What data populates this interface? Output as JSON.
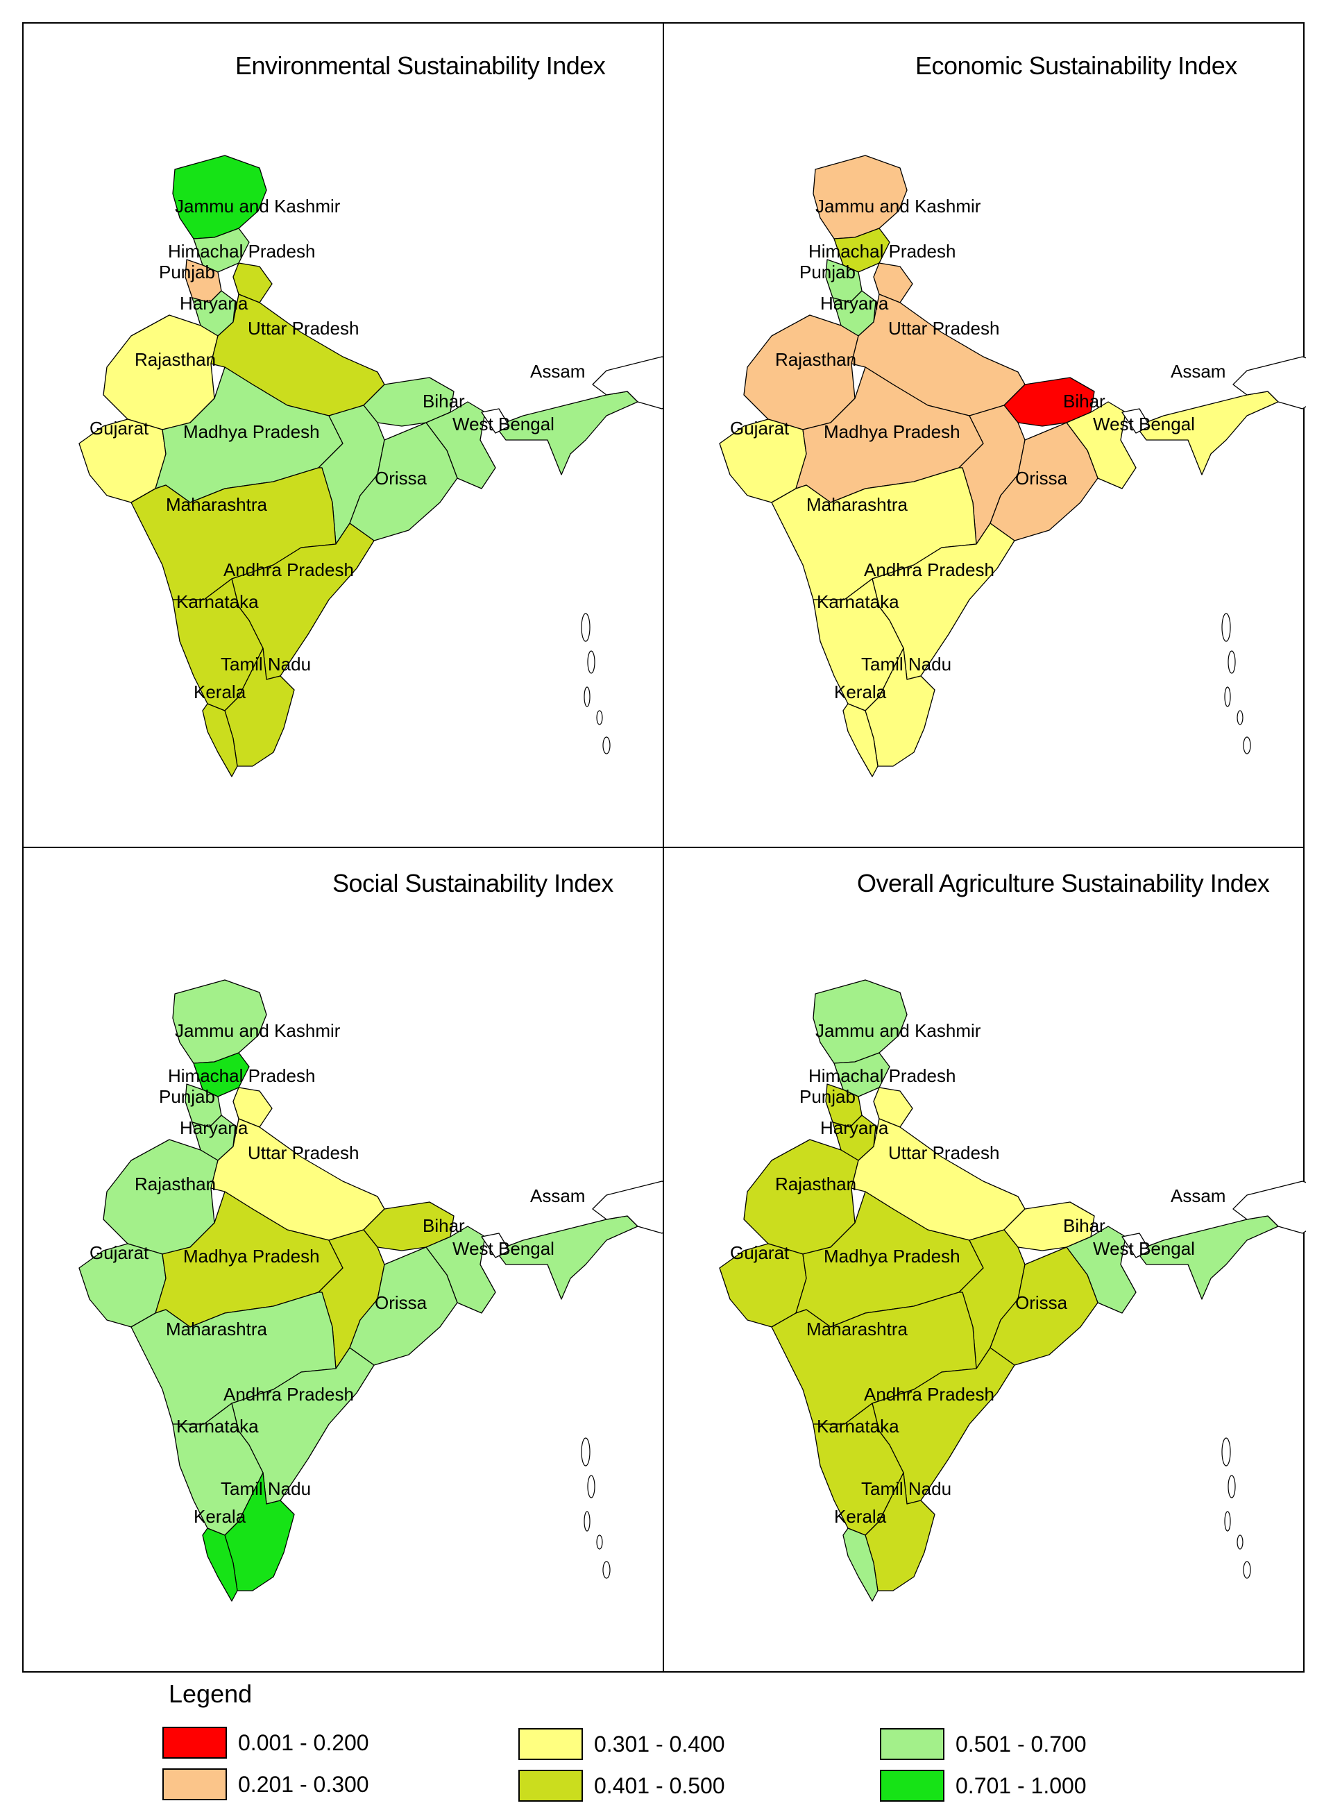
{
  "classes": [
    {
      "label": "0.001 - 0.200",
      "color": "#ff0000"
    },
    {
      "label": "0.201 - 0.300",
      "color": "#fbc58a"
    },
    {
      "label": "0.301 - 0.400",
      "color": "#ffff80"
    },
    {
      "label": "0.401 - 0.500",
      "color": "#cbdd1e"
    },
    {
      "label": "0.501 - 0.700",
      "color": "#a3f08a"
    },
    {
      "label": "0.701 - 1.000",
      "color": "#16e316"
    }
  ],
  "legend": {
    "title": "Legend"
  },
  "panels": [
    {
      "title": "Environmental Sustainability Index",
      "classes": {
        "jk": 5,
        "hp": 4,
        "punjab": 1,
        "haryana": 4,
        "uttarakhand": 3,
        "up": 3,
        "rajasthan": 2,
        "gujarat": 2,
        "mp": 4,
        "maharashtra": 3,
        "karnataka": 3,
        "andhra": 3,
        "tamilnadu": 3,
        "kerala": 3,
        "orissa": 4,
        "bihar": 4,
        "westbengal": 4,
        "assam": 4,
        "chhattisgarh": 4
      }
    },
    {
      "title": "Economic Sustainability Index",
      "classes": {
        "jk": 1,
        "hp": 3,
        "punjab": 4,
        "haryana": 4,
        "uttarakhand": 1,
        "up": 1,
        "rajasthan": 1,
        "gujarat": 2,
        "mp": 1,
        "maharashtra": 2,
        "karnataka": 2,
        "andhra": 2,
        "tamilnadu": 2,
        "kerala": 2,
        "orissa": 1,
        "bihar": 0,
        "westbengal": 2,
        "assam": 2,
        "chhattisgarh": 1
      }
    },
    {
      "title": "Social Sustainability Index",
      "classes": {
        "jk": 4,
        "hp": 5,
        "punjab": 4,
        "haryana": 4,
        "uttarakhand": 2,
        "up": 2,
        "rajasthan": 4,
        "gujarat": 4,
        "mp": 3,
        "maharashtra": 4,
        "karnataka": 4,
        "andhra": 4,
        "tamilnadu": 5,
        "kerala": 5,
        "orissa": 4,
        "bihar": 3,
        "westbengal": 4,
        "assam": 4,
        "chhattisgarh": 3
      }
    },
    {
      "title": "Overall Agriculture Sustainability Index",
      "classes": {
        "jk": 4,
        "hp": 4,
        "punjab": 3,
        "haryana": 3,
        "uttarakhand": 2,
        "up": 2,
        "rajasthan": 3,
        "gujarat": 3,
        "mp": 3,
        "maharashtra": 3,
        "karnataka": 3,
        "andhra": 3,
        "tamilnadu": 3,
        "kerala": 4,
        "orissa": 3,
        "bihar": 2,
        "westbengal": 4,
        "assam": 4,
        "chhattisgarh": 3
      }
    }
  ],
  "state_labels": {
    "jk": "Jammu and Kashmir",
    "hp": "Himachal Pradesh",
    "punjab": "Punjab",
    "haryana": "Haryana",
    "up": "Uttar Pradesh",
    "rajasthan": "Rajasthan",
    "gujarat": "Gujarat",
    "mp": "Madhya Pradesh",
    "bihar": "Bihar",
    "westbengal": "West Bengal",
    "assam": "Assam",
    "orissa": "Orissa",
    "maharashtra": "Maharashtra",
    "andhra": "Andhra Pradesh",
    "karnataka": "Karnataka",
    "tamilnadu": "Tamil Nadu",
    "kerala": "Kerala"
  }
}
